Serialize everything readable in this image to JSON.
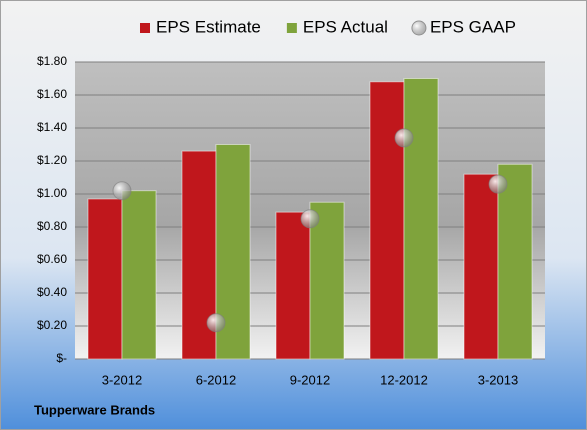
{
  "chart_data": {
    "type": "bar",
    "source": "Tupperware Brands",
    "categories": [
      "3-2012",
      "6-2012",
      "9-2012",
      "12-2012",
      "3-2013"
    ],
    "series": [
      {
        "name": "EPS Estimate",
        "color": "#c0171c",
        "values": [
          0.97,
          1.26,
          0.89,
          1.68,
          1.12
        ]
      },
      {
        "name": "EPS Actual",
        "color": "#7fa33c",
        "values": [
          1.02,
          1.3,
          0.95,
          1.7,
          1.18
        ]
      },
      {
        "name": "EPS GAAP",
        "color": "#a6a6a6",
        "marker": "circle",
        "values": [
          1.02,
          0.22,
          0.85,
          1.34,
          1.06
        ]
      }
    ],
    "legend": "top",
    "grid": true,
    "ylim": [
      0,
      1.8
    ],
    "yticks": [
      {
        "value": 0,
        "label": "$-"
      },
      {
        "value": 0.2,
        "label": "$0.20"
      },
      {
        "value": 0.4,
        "label": "$0.40"
      },
      {
        "value": 0.6,
        "label": "$0.60"
      },
      {
        "value": 0.8,
        "label": "$0.80"
      },
      {
        "value": 1.0,
        "label": "$1.00"
      },
      {
        "value": 1.2,
        "label": "$1.20"
      },
      {
        "value": 1.4,
        "label": "$1.40"
      },
      {
        "value": 1.6,
        "label": "$1.60"
      },
      {
        "value": 1.8,
        "label": "$1.80"
      }
    ]
  }
}
